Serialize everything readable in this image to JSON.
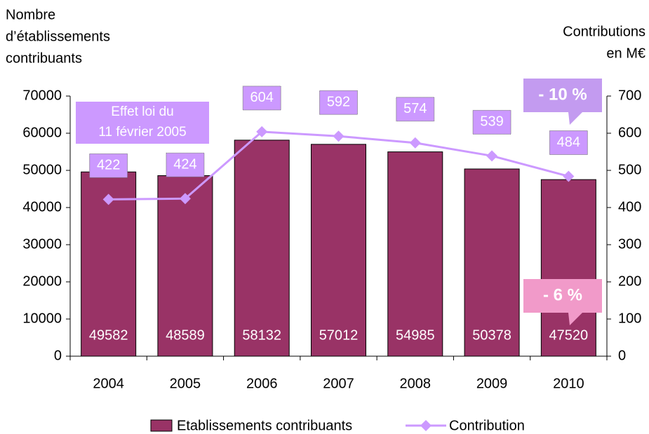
{
  "chart_data": {
    "type": "bar_line",
    "y_label": [
      "Nombre",
      "d’établissements",
      "contribuants"
    ],
    "y2_label": [
      "Contributions",
      "en M€"
    ],
    "categories": [
      "2004",
      "2005",
      "2006",
      "2007",
      "2008",
      "2009",
      "2010"
    ],
    "series": [
      {
        "name": "Etablissements contribuants",
        "type": "bar",
        "color": "#993366",
        "values": [
          49582,
          48589,
          58132,
          57012,
          54985,
          50378,
          47520
        ]
      },
      {
        "name": "Contribution",
        "type": "line",
        "axis": "y2",
        "color": "#cc99ff",
        "values": [
          422,
          424,
          604,
          592,
          574,
          539,
          484
        ]
      }
    ],
    "ylim": [
      0,
      70000
    ],
    "yticks": [
      0,
      10000,
      20000,
      30000,
      40000,
      50000,
      60000,
      70000
    ],
    "y2lim": [
      0,
      700
    ],
    "y2ticks": [
      0,
      100,
      200,
      300,
      400,
      500,
      600,
      700
    ],
    "annotations": [
      {
        "text": [
          "Effet loi du",
          "11 février 2005"
        ],
        "color": "#cc99ff"
      },
      {
        "text": "- 10 %",
        "color": "#c39bf0"
      },
      {
        "text": "- 6 %",
        "color": "#f19ac9"
      }
    ],
    "legend": "bottom"
  }
}
